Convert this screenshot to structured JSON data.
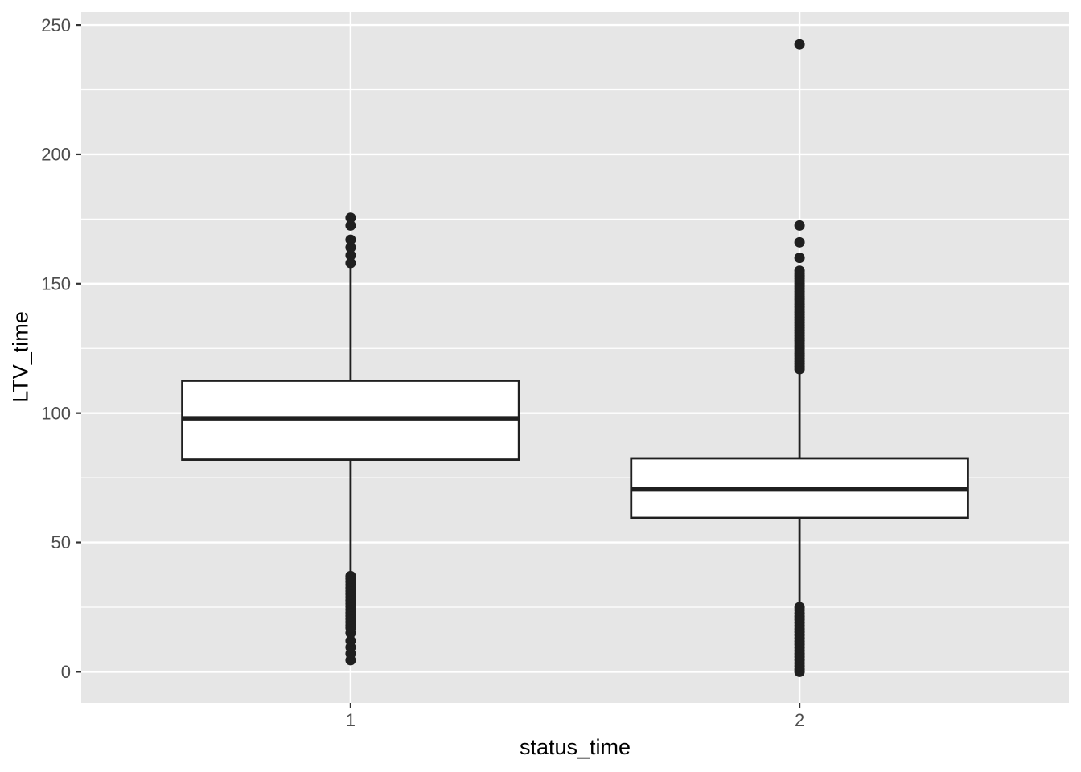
{
  "style": {
    "outer_bg": "#FFFFFF",
    "panel_bg": "#E6E6E6",
    "grid_color": "#FFFFFF",
    "box_fill": "#FFFFFF",
    "line_color": "#1F1F1F",
    "tick_color": "#333333",
    "axis_text_color": "#4D4D4D",
    "axis_title_color": "#000000"
  },
  "chart_data": {
    "type": "boxplot",
    "title": "",
    "xlabel": "status_time",
    "ylabel": "LTV_time",
    "categories": [
      "1",
      "2"
    ],
    "y_major_ticks": [
      0,
      50,
      100,
      150,
      200,
      250
    ],
    "y_minor_ticks": [
      25,
      75,
      125,
      175,
      225
    ],
    "ylim": [
      -12,
      255
    ],
    "legend": "none",
    "grid": "white major+minor horizontal lines and major vertical lines on gray panel",
    "series": [
      {
        "category": "1",
        "whisker_low": 38,
        "q1": 82,
        "median": 98,
        "q3": 112.5,
        "whisker_high": 156.5,
        "outliers_low": [
          4.5,
          7,
          9.5,
          12,
          15,
          17,
          18,
          19.2,
          20.4,
          21.6,
          22.8,
          24,
          25.2,
          26.4,
          27.6,
          28.8,
          30,
          31.2,
          32.4,
          33.6,
          34.8,
          36,
          37
        ],
        "outliers_high": [
          158,
          161,
          164,
          167,
          172.5,
          175.5
        ]
      },
      {
        "category": "2",
        "whisker_low": 26,
        "q1": 59.5,
        "median": 70.5,
        "q3": 82.5,
        "whisker_high": 116,
        "outliers_low": [
          0,
          1,
          2.2,
          3.4,
          4.6,
          5.8,
          7,
          8.2,
          9.4,
          10.6,
          11.8,
          13,
          14.2,
          15.4,
          16.6,
          17.8,
          19,
          20.2,
          21.4,
          22.6,
          23.8,
          25
        ],
        "outliers_high": [
          117,
          118,
          119,
          120,
          121,
          122,
          123,
          124,
          125,
          126,
          127,
          128,
          129,
          130,
          131,
          132,
          133,
          134,
          135,
          136,
          137,
          138,
          139,
          140,
          141,
          142,
          143,
          144,
          145,
          146,
          147,
          148,
          149,
          150,
          151,
          152,
          153,
          154,
          155,
          160,
          166,
          172.5,
          242.5
        ]
      }
    ]
  }
}
